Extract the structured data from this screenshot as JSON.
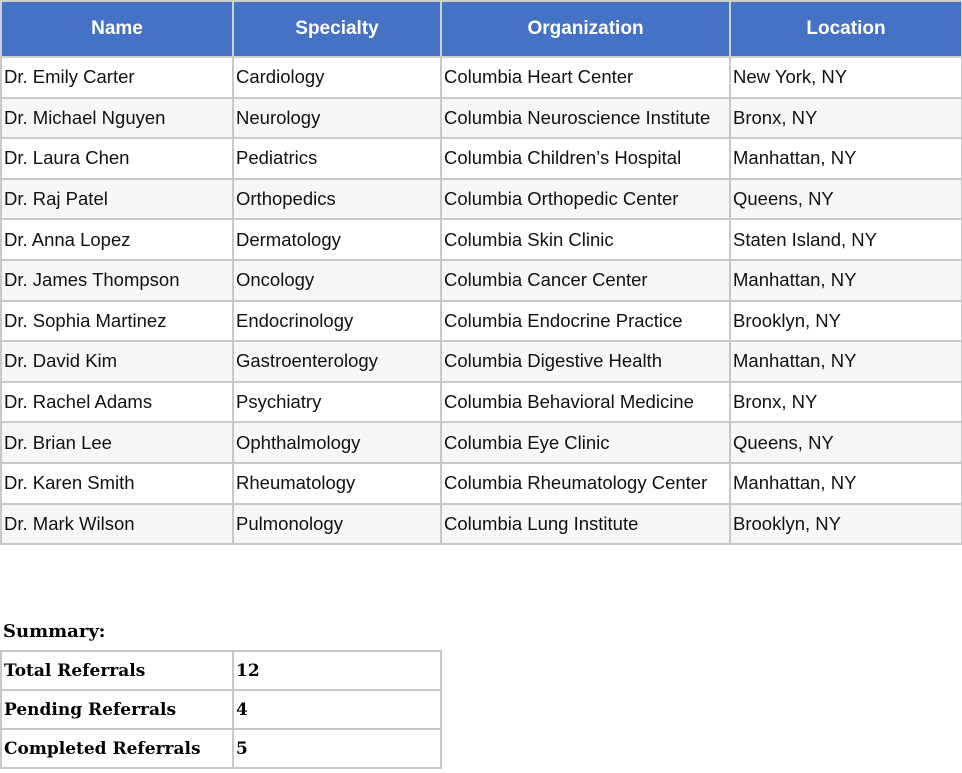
{
  "table": {
    "headers": [
      "Name",
      "Specialty",
      "Organization",
      "Location"
    ],
    "rows": [
      [
        "Dr. Emily Carter",
        "Cardiology",
        "Columbia Heart Center",
        "New York, NY"
      ],
      [
        "Dr. Michael Nguyen",
        "Neurology",
        "Columbia Neuroscience Institute",
        "Bronx, NY"
      ],
      [
        "Dr. Laura Chen",
        "Pediatrics",
        "Columbia Children’s Hospital",
        "Manhattan, NY"
      ],
      [
        "Dr. Raj Patel",
        "Orthopedics",
        "Columbia Orthopedic Center",
        "Queens, NY"
      ],
      [
        "Dr. Anna Lopez",
        "Dermatology",
        "Columbia Skin Clinic",
        "Staten Island, NY"
      ],
      [
        "Dr. James Thompson",
        "Oncology",
        "Columbia Cancer Center",
        "Manhattan, NY"
      ],
      [
        "Dr. Sophia Martinez",
        "Endocrinology",
        "Columbia Endocrine Practice",
        "Brooklyn, NY"
      ],
      [
        "Dr. David Kim",
        "Gastroenterology",
        "Columbia Digestive Health",
        "Manhattan, NY"
      ],
      [
        "Dr. Rachel Adams",
        "Psychiatry",
        "Columbia Behavioral Medicine",
        "Bronx, NY"
      ],
      [
        "Dr. Brian Lee",
        "Ophthalmology",
        "Columbia Eye Clinic",
        "Queens, NY"
      ],
      [
        "Dr. Karen Smith",
        "Rheumatology",
        "Columbia Rheumatology Center",
        "Manhattan, NY"
      ],
      [
        "Dr. Mark Wilson",
        "Pulmonology",
        "Columbia Lung Institute",
        "Brooklyn, NY"
      ]
    ]
  },
  "summary": {
    "label": "Summary:",
    "rows": [
      [
        "Total Referrals",
        "12"
      ],
      [
        "Pending Referrals",
        "4"
      ],
      [
        "Completed Referrals",
        "5"
      ]
    ]
  },
  "colors": {
    "header_bg": "#4472c4",
    "header_text": "#ffffff",
    "alt_row": "#f7f7f7"
  }
}
